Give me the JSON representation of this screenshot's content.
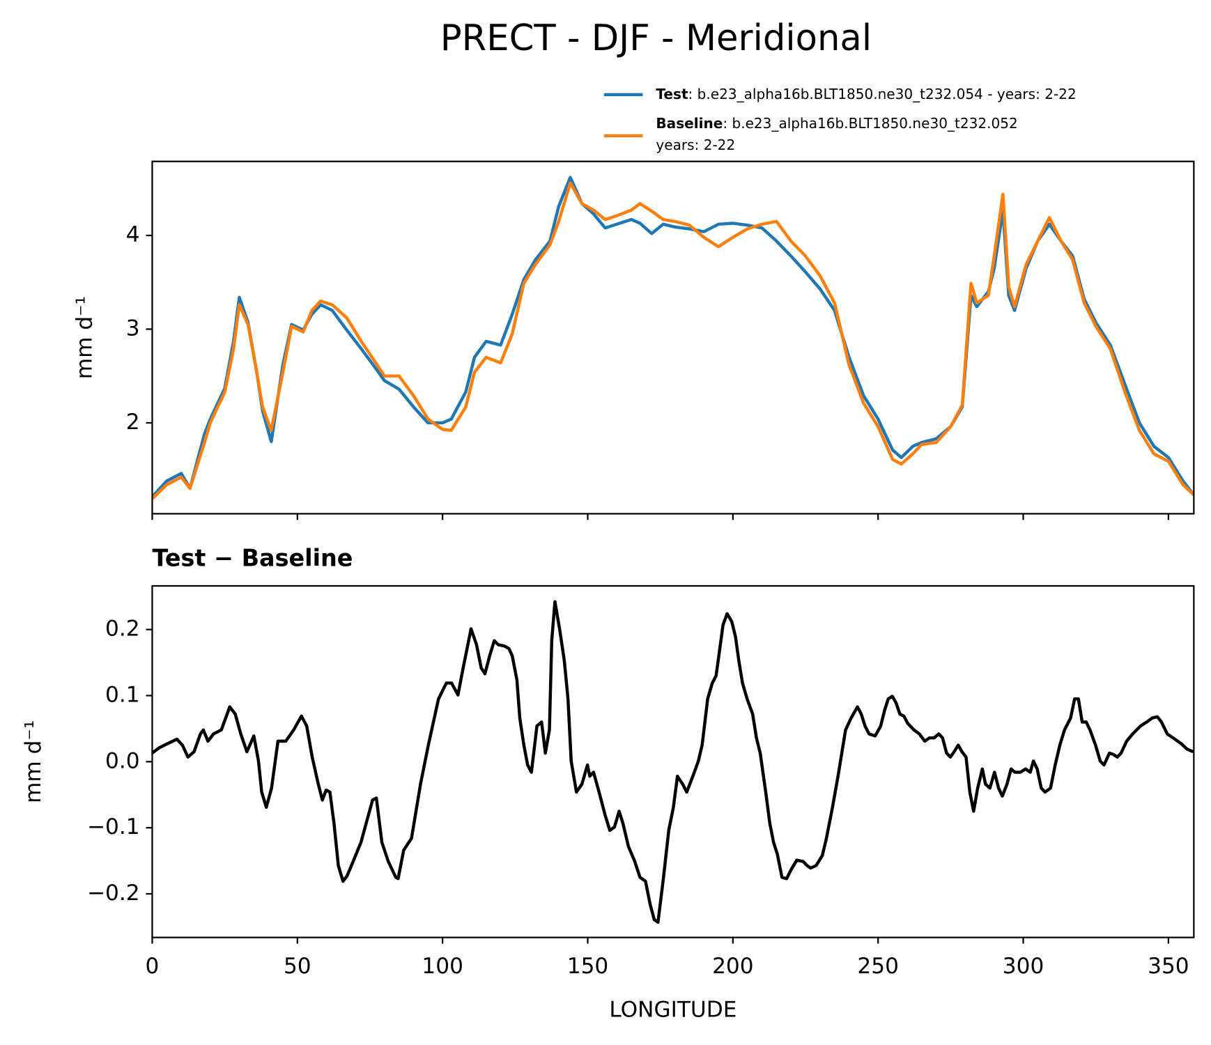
{
  "chart_data": [
    {
      "type": "line",
      "title": "PRECT - DJF - Meridional",
      "ylabel": "mm d⁻¹",
      "xlim": [
        0,
        358.75
      ],
      "ylim": [
        1.03,
        4.79
      ],
      "xticks": [
        0,
        50,
        100,
        150,
        200,
        250,
        300,
        350
      ],
      "xtick_labels": false,
      "yticks": [
        2,
        3,
        4
      ],
      "x": [
        0,
        5,
        10,
        13,
        18,
        20,
        25,
        28,
        30,
        33,
        36,
        38,
        41,
        45,
        48,
        52,
        55,
        58,
        62,
        67,
        72,
        77,
        80,
        85,
        90,
        95,
        100,
        103,
        108,
        111,
        115,
        120,
        124,
        128,
        132,
        137,
        140,
        144,
        148,
        152,
        156,
        160,
        165,
        168,
        172,
        176,
        180,
        185,
        190,
        195,
        200,
        205,
        210,
        215,
        220,
        225,
        230,
        235,
        240,
        245,
        250,
        255,
        258,
        262,
        265,
        270,
        275,
        279,
        282,
        284,
        288,
        290,
        293,
        295,
        297,
        301,
        305,
        309,
        313,
        317,
        321,
        325,
        330,
        335,
        340,
        345,
        350,
        355,
        358.75
      ],
      "series": [
        {
          "name": "Test",
          "label": ": b.e23_alpha16b.BLT1850.ne30_t232.054 - years: 2-22",
          "color": "#1f77b4",
          "values": [
            1.21,
            1.38,
            1.46,
            1.3,
            1.88,
            2.04,
            2.37,
            2.87,
            3.34,
            3.07,
            2.54,
            2.13,
            1.8,
            2.62,
            3.05,
            2.99,
            3.16,
            3.26,
            3.2,
            2.99,
            2.79,
            2.58,
            2.45,
            2.36,
            2.17,
            2.0,
            2.0,
            2.04,
            2.33,
            2.7,
            2.87,
            2.83,
            3.16,
            3.53,
            3.74,
            3.94,
            4.31,
            4.62,
            4.34,
            4.23,
            4.08,
            4.12,
            4.17,
            4.13,
            4.02,
            4.12,
            4.09,
            4.07,
            4.04,
            4.12,
            4.13,
            4.11,
            4.08,
            3.94,
            3.78,
            3.61,
            3.43,
            3.2,
            2.7,
            2.29,
            2.04,
            1.71,
            1.63,
            1.75,
            1.79,
            1.83,
            1.96,
            2.17,
            3.36,
            3.24,
            3.4,
            3.65,
            4.27,
            3.36,
            3.2,
            3.65,
            3.94,
            4.12,
            3.94,
            3.78,
            3.32,
            3.07,
            2.83,
            2.41,
            2.0,
            1.75,
            1.63,
            1.38,
            1.23
          ]
        },
        {
          "name": "Baseline",
          "label": ": b.e23_alpha16b.BLT1850.ne30_t232.052",
          "label2": "years: 2-22",
          "color": "#ff7f0e",
          "values": [
            1.19,
            1.34,
            1.42,
            1.3,
            1.79,
            2.0,
            2.33,
            2.79,
            3.26,
            3.05,
            2.54,
            2.17,
            1.92,
            2.54,
            3.03,
            2.97,
            3.2,
            3.3,
            3.26,
            3.12,
            2.87,
            2.64,
            2.5,
            2.5,
            2.29,
            2.04,
            1.93,
            1.92,
            2.17,
            2.54,
            2.7,
            2.64,
            2.95,
            3.49,
            3.69,
            3.9,
            4.15,
            4.56,
            4.34,
            4.27,
            4.17,
            4.21,
            4.27,
            4.34,
            4.26,
            4.17,
            4.15,
            4.11,
            3.98,
            3.88,
            3.98,
            4.07,
            4.12,
            4.15,
            3.94,
            3.78,
            3.57,
            3.28,
            2.62,
            2.21,
            1.96,
            1.61,
            1.56,
            1.67,
            1.77,
            1.79,
            1.96,
            2.19,
            3.49,
            3.28,
            3.36,
            3.78,
            4.44,
            3.45,
            3.24,
            3.69,
            3.94,
            4.19,
            3.94,
            3.74,
            3.28,
            3.03,
            2.79,
            2.33,
            1.92,
            1.67,
            1.59,
            1.34,
            1.23
          ]
        }
      ]
    },
    {
      "type": "line",
      "title": "Test − Baseline",
      "ylabel": "mm d⁻¹",
      "xlabel": "LONGITUDE",
      "xlim": [
        0,
        358.75
      ],
      "ylim": [
        -0.266,
        0.266
      ],
      "xticks": [
        0,
        50,
        100,
        150,
        200,
        250,
        300,
        350
      ],
      "yticks": [
        {
          "value": -0.2,
          "label": "−0.2"
        },
        {
          "value": -0.1,
          "label": "−0.1"
        },
        {
          "value": 0,
          "label": "0.0"
        },
        0.1,
        0.2
      ],
      "x": [
        0,
        2.4,
        5.1,
        8.5,
        10.4,
        12.3,
        14.4,
        16.6,
        17.6,
        19.2,
        21.1,
        23.8,
        26.7,
        28.6,
        30.5,
        32.6,
        35.0,
        36.6,
        37.7,
        39.3,
        41.1,
        43.3,
        46.0,
        48.7,
        51.4,
        53.2,
        55.1,
        57.2,
        58.6,
        59.9,
        61.2,
        62.6,
        64.1,
        65.7,
        67.1,
        69.2,
        71.9,
        73.7,
        75.9,
        77.2,
        79.1,
        81.3,
        83.9,
        84.7,
        86.6,
        89.3,
        92.4,
        95.1,
        98.6,
        101.3,
        103.1,
        105.3,
        107.1,
        109.8,
        111.7,
        113.3,
        114.6,
        116.2,
        117.8,
        119.2,
        121.3,
        122.9,
        124.0,
        125.6,
        126.6,
        128.0,
        129.3,
        130.6,
        132.5,
        134.1,
        135.4,
        136.8,
        137.6,
        138.7,
        140.3,
        141.9,
        143.2,
        144.3,
        146.1,
        148.0,
        149.9,
        150.7,
        152.0,
        153.9,
        156.0,
        157.6,
        159.2,
        160.8,
        162.1,
        164.0,
        166.2,
        168.0,
        169.9,
        171.5,
        172.9,
        174.2,
        176.1,
        177.9,
        179.5,
        180.9,
        182.7,
        184.1,
        186.2,
        188.1,
        189.4,
        191.3,
        192.9,
        194.2,
        195.3,
        196.6,
        198.0,
        199.6,
        200.9,
        202.0,
        203.3,
        204.9,
        206.8,
        208.1,
        209.4,
        211.3,
        212.7,
        214.0,
        215.3,
        216.9,
        218.5,
        220.1,
        222.0,
        224.2,
        225.5,
        226.8,
        228.7,
        230.8,
        232.2,
        234.3,
        236.2,
        238.8,
        240.7,
        242.9,
        244.2,
        245.5,
        246.9,
        249.0,
        250.9,
        252.2,
        253.5,
        254.9,
        256.2,
        257.5,
        258.9,
        260.2,
        262.4,
        264.2,
        266.1,
        267.7,
        269.3,
        270.9,
        272.2,
        273.6,
        274.9,
        276.2,
        277.6,
        278.9,
        280.3,
        281.6,
        282.9,
        284.3,
        285.9,
        287.0,
        288.5,
        290.1,
        291.5,
        292.8,
        294.4,
        295.8,
        297.1,
        299.0,
        300.8,
        302.4,
        303.5,
        304.8,
        306.2,
        307.5,
        309.4,
        311.0,
        312.6,
        314.2,
        316.3,
        317.7,
        319.0,
        320.3,
        321.7,
        323.0,
        324.9,
        326.5,
        327.8,
        329.7,
        331.0,
        332.4,
        333.7,
        335.6,
        337.7,
        340.4,
        342.5,
        344.4,
        346.2,
        347.6,
        349.6,
        351.6,
        353.2,
        354.5,
        356.4,
        358.5
      ],
      "series": [
        {
          "color": "#000000",
          "values": [
            0.013,
            0.021,
            0.027,
            0.034,
            0.025,
            0.007,
            0.015,
            0.042,
            0.048,
            0.031,
            0.042,
            0.048,
            0.083,
            0.072,
            0.042,
            0.015,
            0.039,
            0.001,
            -0.046,
            -0.069,
            -0.04,
            0.031,
            0.031,
            0.048,
            0.069,
            0.054,
            0.007,
            -0.034,
            -0.058,
            -0.043,
            -0.046,
            -0.093,
            -0.157,
            -0.181,
            -0.173,
            -0.151,
            -0.122,
            -0.093,
            -0.058,
            -0.055,
            -0.122,
            -0.151,
            -0.175,
            -0.177,
            -0.134,
            -0.116,
            -0.034,
            0.025,
            0.095,
            0.119,
            0.119,
            0.101,
            0.142,
            0.201,
            0.177,
            0.142,
            0.133,
            0.16,
            0.183,
            0.177,
            0.175,
            0.171,
            0.16,
            0.124,
            0.066,
            0.025,
            -0.005,
            -0.016,
            0.054,
            0.06,
            0.013,
            0.048,
            0.183,
            0.242,
            0.201,
            0.154,
            0.095,
            0.001,
            -0.046,
            -0.034,
            -0.005,
            -0.022,
            -0.016,
            -0.046,
            -0.081,
            -0.104,
            -0.099,
            -0.075,
            -0.093,
            -0.128,
            -0.151,
            -0.175,
            -0.181,
            -0.216,
            -0.239,
            -0.243,
            -0.175,
            -0.104,
            -0.069,
            -0.022,
            -0.034,
            -0.046,
            -0.022,
            0.001,
            0.025,
            0.095,
            0.119,
            0.13,
            0.165,
            0.207,
            0.224,
            0.212,
            0.189,
            0.154,
            0.119,
            0.095,
            0.072,
            0.036,
            0.013,
            -0.046,
            -0.093,
            -0.122,
            -0.14,
            -0.175,
            -0.177,
            -0.163,
            -0.149,
            -0.151,
            -0.157,
            -0.161,
            -0.157,
            -0.142,
            -0.116,
            -0.069,
            -0.022,
            0.048,
            0.066,
            0.083,
            0.072,
            0.054,
            0.042,
            0.039,
            0.054,
            0.077,
            0.095,
            0.099,
            0.089,
            0.072,
            0.069,
            0.058,
            0.048,
            0.042,
            0.031,
            0.036,
            0.036,
            0.042,
            0.036,
            0.013,
            0.007,
            0.015,
            0.025,
            0.015,
            0.007,
            -0.046,
            -0.075,
            -0.04,
            -0.011,
            -0.034,
            -0.04,
            -0.016,
            -0.04,
            -0.052,
            -0.034,
            -0.011,
            -0.016,
            -0.016,
            -0.011,
            -0.016,
            0.001,
            -0.011,
            -0.04,
            -0.046,
            -0.04,
            -0.005,
            0.025,
            0.048,
            0.066,
            0.095,
            0.095,
            0.06,
            0.06,
            0.048,
            0.025,
            0.001,
            -0.005,
            0.013,
            0.011,
            0.007,
            0.013,
            0.031,
            0.042,
            0.054,
            0.06,
            0.066,
            0.068,
            0.06,
            0.042,
            0.036,
            0.031,
            0.027,
            0.019,
            0.015
          ]
        }
      ]
    }
  ]
}
